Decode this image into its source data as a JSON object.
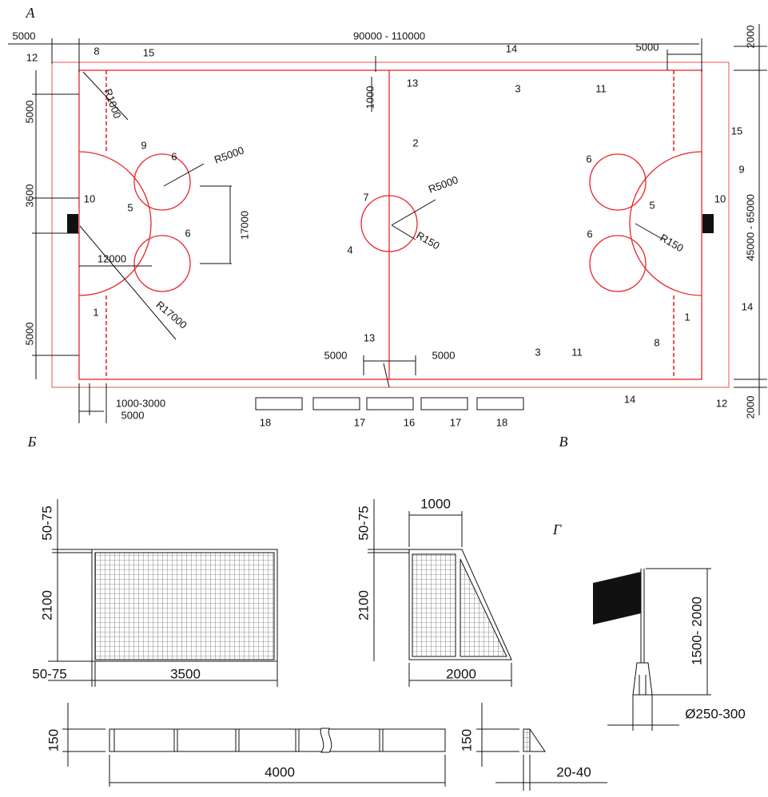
{
  "section_letters": [
    "А",
    "Б",
    "В",
    "Г"
  ],
  "field": {
    "labels": [
      "5000",
      "90000 - 110000",
      "2000",
      "5000",
      "12",
      "8",
      "15",
      "R1000",
      "5000",
      "1000",
      "13",
      "14",
      "3",
      "11",
      "15",
      "9",
      "6",
      "R5000",
      "2",
      "R5000",
      "7",
      "3600",
      "10",
      "5",
      "17000",
      "4",
      "R150",
      "6",
      "9",
      "10",
      "5",
      "R150",
      "45000 - 65000",
      "6",
      "12000",
      "6",
      "R17000",
      "14",
      "1",
      "1",
      "5000",
      "13",
      "5000",
      "5000",
      "3",
      "11",
      "8",
      "1000-3000",
      "5000",
      "18",
      "17",
      "16",
      "17",
      "18",
      "14",
      "12",
      "2000"
    ]
  },
  "goal_front": {
    "labels": [
      "50-75",
      "2100",
      "50-75",
      "3500"
    ]
  },
  "goal_side": {
    "labels": [
      "50-75",
      "1000",
      "2100",
      "2000"
    ]
  },
  "flag": {
    "labels": [
      "1500- 2000",
      "Ø250-300"
    ]
  },
  "board": {
    "labels": [
      "150",
      "4000",
      "150",
      "20-40"
    ]
  }
}
